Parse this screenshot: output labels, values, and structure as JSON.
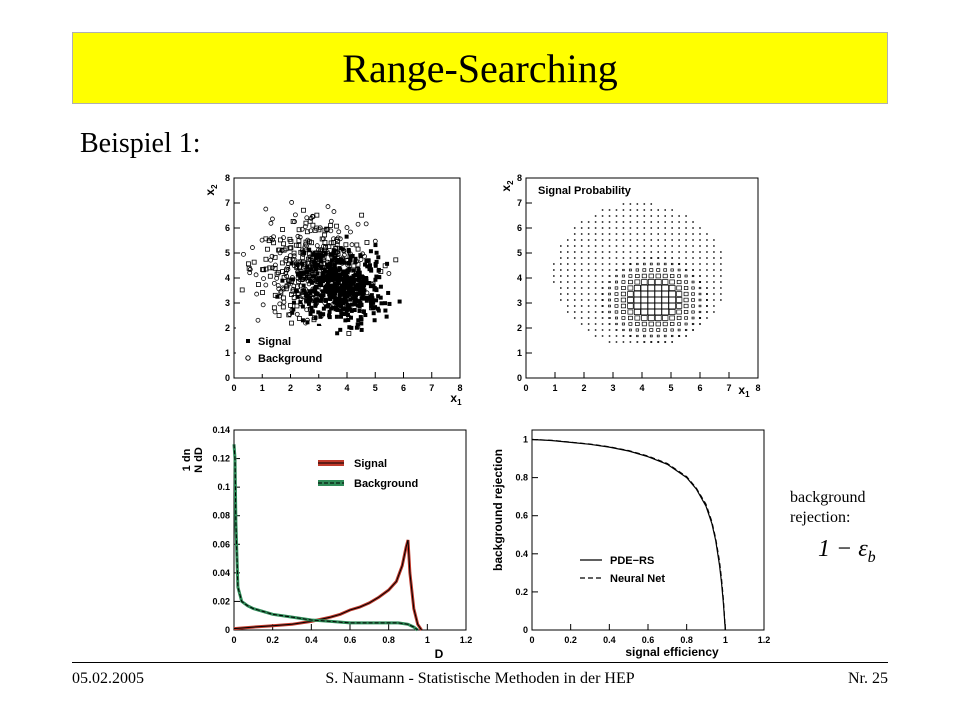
{
  "slide": {
    "title": "Range-Searching",
    "subtitle": "Beispiel 1:",
    "note_line1": "background",
    "note_line2": "rejection:",
    "formula": "1 − ε",
    "formula_sub": "b",
    "footer_date": "05.02.2005",
    "footer_author": "S. Naumann - Statistische Methoden in der HEP",
    "footer_page": "Nr. 25"
  },
  "chart_data": [
    {
      "type": "scatter",
      "xlabel": "x",
      "xlabel_sub": "1",
      "ylabel": "x",
      "ylabel_sub": "2",
      "xlim": [
        0,
        8
      ],
      "ylim": [
        0,
        8
      ],
      "xticks": [
        "0",
        "1",
        "2",
        "3",
        "4",
        "5",
        "6",
        "7",
        "8"
      ],
      "yticks": [
        "0",
        "1",
        "2",
        "3",
        "4",
        "5",
        "6",
        "7",
        "8"
      ],
      "legend": [
        "Signal",
        "Background"
      ],
      "legend_position": "bottom-left",
      "series": [
        {
          "name": "Signal",
          "marker": "filled-square",
          "center": [
            3.8,
            3.6
          ],
          "spread": [
            0.75,
            0.7
          ]
        },
        {
          "name": "Background",
          "marker": "open-circle",
          "center": [
            2.8,
            4.4
          ],
          "spread": [
            0.95,
            1.05
          ]
        }
      ]
    },
    {
      "type": "heatmap",
      "title": "Signal Probability",
      "xlabel": "x",
      "xlabel_sub": "1",
      "ylabel": "x",
      "ylabel_sub": "2",
      "xlim": [
        0,
        8
      ],
      "ylim": [
        0,
        8
      ],
      "xticks": [
        "0",
        "1",
        "2",
        "3",
        "4",
        "5",
        "6",
        "7",
        "8"
      ],
      "yticks": [
        "0",
        "1",
        "2",
        "3",
        "4",
        "5",
        "6",
        "7",
        "8"
      ],
      "grid_x_range": [
        0.6,
        7.4
      ],
      "grid_y_range": [
        0.6,
        7.2
      ],
      "probability_peak": [
        4.3,
        3.0
      ]
    },
    {
      "type": "line",
      "xlabel": "D",
      "ylabel": "1 dn / N dD",
      "xlim": [
        0,
        1.2
      ],
      "ylim": [
        0,
        0.14
      ],
      "xticks": [
        "0",
        "0.2",
        "0.4",
        "0.6",
        "0.8",
        "1",
        "1.2"
      ],
      "yticks": [
        "0",
        "0.02",
        "0.04",
        "0.06",
        "0.08",
        "0.1",
        "0.12",
        "0.14"
      ],
      "legend": [
        "Signal",
        "Background"
      ],
      "legend_position": "top-right",
      "series": [
        {
          "name": "Signal",
          "color": "#c0392b",
          "x": [
            0.0,
            0.1,
            0.2,
            0.3,
            0.4,
            0.5,
            0.55,
            0.6,
            0.65,
            0.7,
            0.75,
            0.8,
            0.84,
            0.87,
            0.89,
            0.9,
            0.91,
            0.93,
            0.95,
            0.97
          ],
          "y": [
            0.001,
            0.002,
            0.003,
            0.004,
            0.006,
            0.009,
            0.011,
            0.014,
            0.016,
            0.019,
            0.023,
            0.028,
            0.034,
            0.045,
            0.058,
            0.063,
            0.04,
            0.015,
            0.004,
            0.0
          ]
        },
        {
          "name": "Background",
          "color": "#2e8b57",
          "x": [
            0.0,
            0.005,
            0.01,
            0.02,
            0.04,
            0.07,
            0.1,
            0.15,
            0.2,
            0.3,
            0.4,
            0.5,
            0.6,
            0.7,
            0.8,
            0.85,
            0.9,
            0.93,
            0.95
          ],
          "y": [
            0.13,
            0.12,
            0.075,
            0.03,
            0.02,
            0.017,
            0.015,
            0.013,
            0.011,
            0.009,
            0.007,
            0.006,
            0.005,
            0.005,
            0.005,
            0.005,
            0.004,
            0.002,
            0.0
          ]
        }
      ]
    },
    {
      "type": "line",
      "xlabel": "signal efficiency",
      "ylabel": "background rejection",
      "xlim": [
        0,
        1.2
      ],
      "ylim": [
        0,
        1.05
      ],
      "xticks": [
        "0",
        "0.2",
        "0.4",
        "0.6",
        "0.8",
        "1",
        "1.2"
      ],
      "yticks": [
        "0",
        "0.2",
        "0.4",
        "0.6",
        "0.8",
        "1"
      ],
      "legend": [
        "PDE−RS",
        "Neural Net"
      ],
      "legend_position": "bottom-left",
      "series": [
        {
          "name": "PDE−RS",
          "x": [
            0.0,
            0.1,
            0.2,
            0.3,
            0.4,
            0.5,
            0.6,
            0.7,
            0.8,
            0.85,
            0.9,
            0.93,
            0.95,
            0.97,
            0.98,
            0.99,
            1.0
          ],
          "y": [
            1.0,
            0.995,
            0.985,
            0.975,
            0.96,
            0.94,
            0.91,
            0.87,
            0.8,
            0.74,
            0.65,
            0.56,
            0.47,
            0.34,
            0.25,
            0.14,
            0.0
          ]
        },
        {
          "name": "Neural Net",
          "x": [
            0.0,
            0.1,
            0.2,
            0.3,
            0.4,
            0.5,
            0.6,
            0.7,
            0.8,
            0.85,
            0.9,
            0.93,
            0.95,
            0.97,
            0.98,
            0.99,
            1.0
          ],
          "y": [
            1.0,
            0.996,
            0.986,
            0.976,
            0.962,
            0.942,
            0.913,
            0.874,
            0.805,
            0.745,
            0.66,
            0.57,
            0.48,
            0.36,
            0.27,
            0.16,
            0.0
          ]
        }
      ]
    }
  ]
}
